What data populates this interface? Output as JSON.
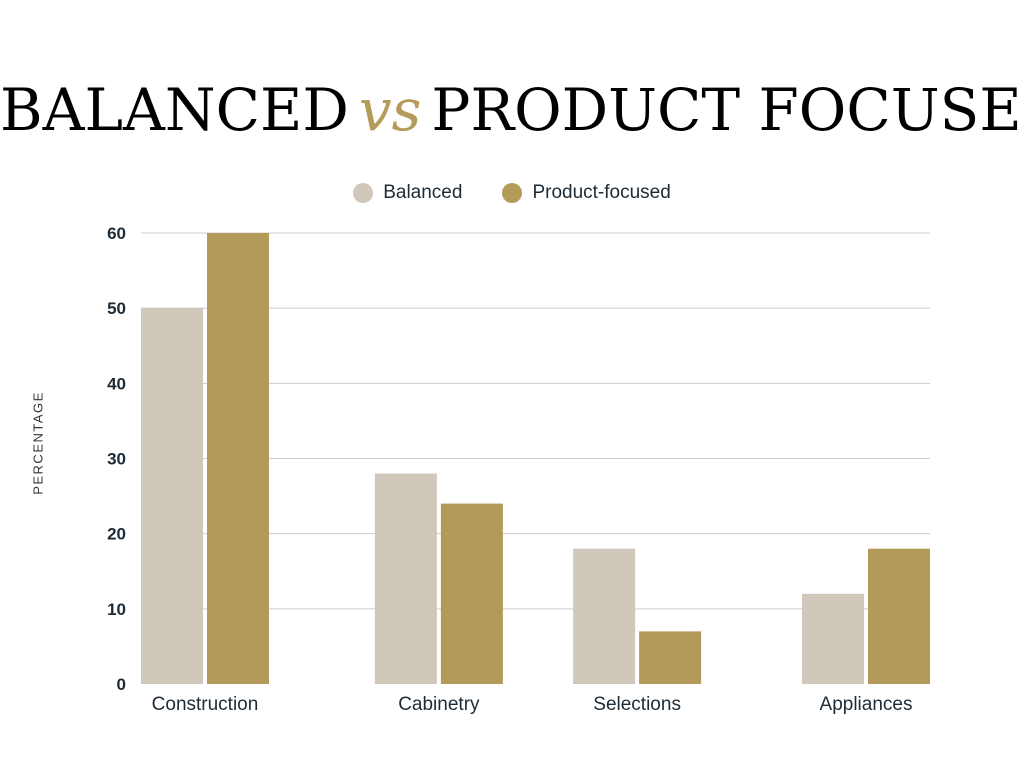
{
  "title": {
    "part1": "BALANCED",
    "vs": "vs",
    "part2": "PRODUCT FOCUSED",
    "accent_color": "#b59b5a"
  },
  "chart_data": {
    "type": "bar",
    "title": "BALANCED vs PRODUCT FOCUSED",
    "xlabel": "",
    "ylabel": "PERCENTAGE",
    "categories": [
      "Construction",
      "Cabinetry",
      "Selections",
      "Appliances"
    ],
    "series": [
      {
        "name": "Balanced",
        "values": [
          50,
          28,
          18,
          12
        ],
        "color": "#cfc8bb"
      },
      {
        "name": "Product-focused",
        "values": [
          60,
          24,
          7,
          18
        ],
        "color": "#b39a58"
      }
    ],
    "ylim": [
      0,
      60
    ],
    "yticks": [
      0,
      10,
      20,
      30,
      40,
      50,
      60
    ],
    "grid": true,
    "legend_position": "top-center"
  }
}
